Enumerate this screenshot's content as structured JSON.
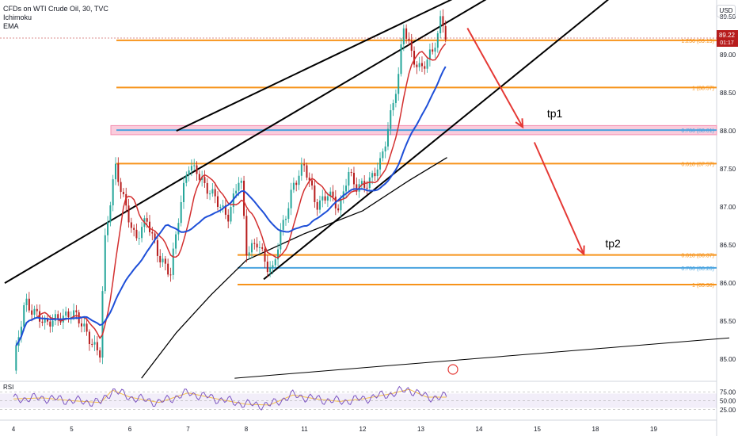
{
  "legend": {
    "symbol": "CFDs on WTI Crude Oil, 30, TVC",
    "ind1": "Ichimoku",
    "ind2": "EMA"
  },
  "currency": "USD",
  "rsi_label": "RSI",
  "colors": {
    "fib": "#f7931a",
    "fib_blue": "#4aa3df",
    "arrow": "#e53935",
    "zone": "#f48fb1",
    "candle_up": "#26a69a",
    "candle_down": "#b71c1c",
    "tenkan": "#d32f2f",
    "kijun": "#1e4fd8",
    "rsi": "#7e57c2",
    "rsi_ma": "#f5c04a",
    "price_tag": "#b71c1c"
  },
  "chart_data": {
    "type": "candlestick",
    "x_tick_labels": [
      "4",
      "5",
      "6",
      "7",
      "8",
      "11",
      "12",
      "13",
      "14",
      "15",
      "18",
      "19"
    ],
    "y_tick_labels": [
      "85.00",
      "85.50",
      "86.00",
      "86.50",
      "87.00",
      "87.50",
      "88.00",
      "88.50",
      "89.00",
      "89.50"
    ],
    "ylim": [
      84.72,
      89.72
    ],
    "rsi_ticks": [
      "75.00",
      "50.00",
      "25.00"
    ],
    "price_tag": {
      "value": "89.22",
      "countdown": "01:17"
    },
    "fib_levels": [
      {
        "label": "1.236 (89.19)",
        "value": 89.19,
        "color": "orange"
      },
      {
        "label": "1 (88.57)",
        "value": 88.57,
        "color": "orange"
      },
      {
        "label": "0.786 (88.01)",
        "value": 88.01,
        "color": "blue"
      },
      {
        "label": "0.618 (87.57)",
        "value": 87.57,
        "color": "orange"
      },
      {
        "label": "0.618 (86.37)",
        "value": 86.37,
        "color": "orange"
      },
      {
        "label": "0.786 (86.20)",
        "value": 86.2,
        "color": "blue"
      },
      {
        "label": "1 (85.98)",
        "value": 85.98,
        "color": "orange"
      }
    ],
    "annotations": [
      "tp1",
      "tp2"
    ],
    "resistance_zone": [
      87.95,
      88.07
    ],
    "price_path": [
      [
        0,
        84.85
      ],
      [
        0.2,
        85.8
      ],
      [
        0.4,
        85.6
      ],
      [
        0.55,
        85.4
      ],
      [
        0.8,
        85.6
      ],
      [
        1.0,
        85.6
      ],
      [
        1.2,
        85.4
      ],
      [
        1.5,
        85.1
      ],
      [
        1.55,
        86.4
      ],
      [
        1.75,
        87.5
      ],
      [
        1.95,
        87.0
      ],
      [
        2.1,
        86.55
      ],
      [
        2.3,
        86.8
      ],
      [
        2.5,
        86.4
      ],
      [
        2.7,
        86.1
      ],
      [
        2.85,
        86.9
      ],
      [
        3.0,
        87.6
      ],
      [
        3.15,
        87.5
      ],
      [
        3.3,
        87.2
      ],
      [
        3.5,
        87.1
      ],
      [
        3.7,
        86.9
      ],
      [
        3.9,
        87.4
      ],
      [
        4.0,
        86.4
      ],
      [
        4.2,
        86.6
      ],
      [
        4.35,
        86.2
      ],
      [
        4.45,
        86.1
      ],
      [
        4.6,
        86.7
      ],
      [
        4.8,
        87.3
      ],
      [
        5.0,
        87.5
      ],
      [
        5.2,
        87.05
      ],
      [
        5.4,
        87.2
      ],
      [
        5.6,
        86.9
      ],
      [
        5.75,
        87.5
      ],
      [
        5.9,
        87.3
      ],
      [
        6.1,
        87.25
      ],
      [
        6.3,
        87.6
      ],
      [
        6.5,
        88.3
      ],
      [
        6.62,
        88.7
      ],
      [
        6.7,
        89.35
      ],
      [
        6.85,
        89.0
      ],
      [
        7.0,
        88.85
      ],
      [
        7.2,
        89.0
      ],
      [
        7.3,
        89.25
      ],
      [
        7.35,
        89.5
      ],
      [
        7.45,
        89.22
      ]
    ],
    "rsi_path": [
      [
        0,
        55
      ],
      [
        0.5,
        58
      ],
      [
        1.0,
        50
      ],
      [
        1.5,
        45
      ],
      [
        1.7,
        80
      ],
      [
        2.0,
        60
      ],
      [
        2.5,
        45
      ],
      [
        3.0,
        72
      ],
      [
        3.5,
        55
      ],
      [
        4.0,
        40
      ],
      [
        4.4,
        38
      ],
      [
        4.8,
        66
      ],
      [
        5.2,
        55
      ],
      [
        5.6,
        48
      ],
      [
        6.0,
        55
      ],
      [
        6.5,
        70
      ],
      [
        6.8,
        82
      ],
      [
        7.1,
        60
      ],
      [
        7.45,
        60
      ]
    ]
  }
}
